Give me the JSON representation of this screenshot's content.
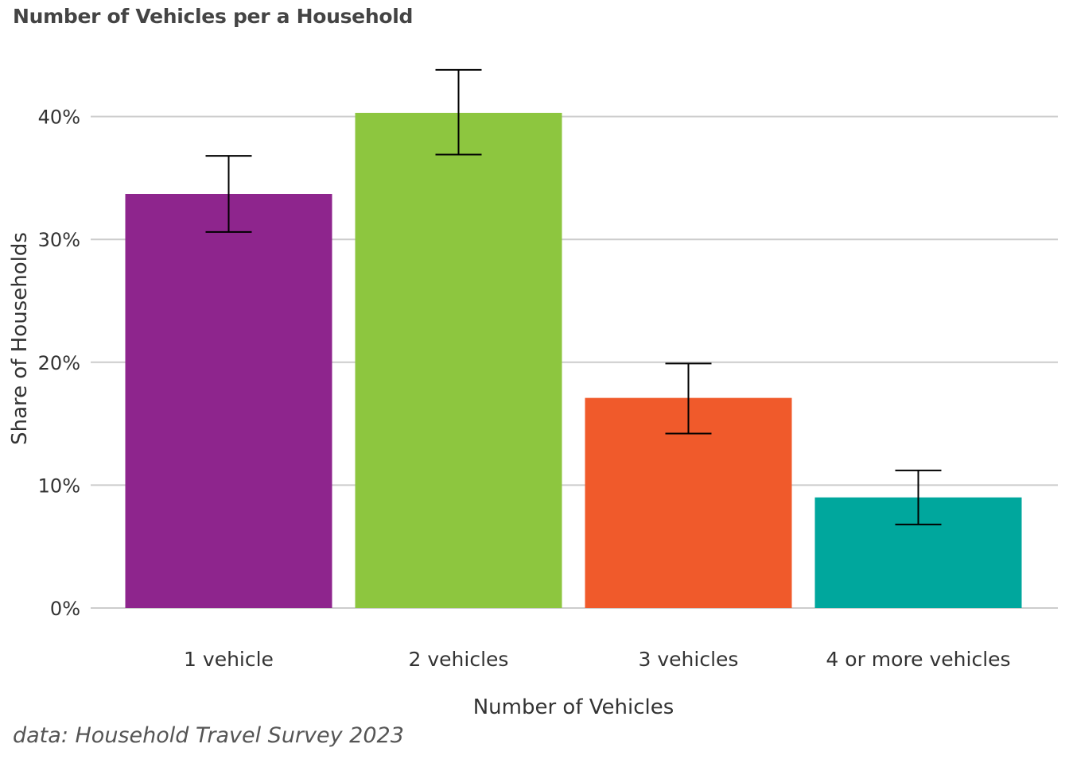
{
  "chart_data": {
    "type": "bar",
    "title": "Number of Vehicles per a Household",
    "xlabel": "Number of Vehicles",
    "ylabel": "Share of Households",
    "caption": "data: Household Travel Survey 2023",
    "categories": [
      "1 vehicle",
      "2 vehicles",
      "3 vehicles",
      "4 or more vehicles"
    ],
    "values": [
      33.7,
      40.3,
      17.1,
      9.0
    ],
    "error_low": [
      30.6,
      36.9,
      14.2,
      6.8
    ],
    "error_high": [
      36.8,
      43.8,
      19.9,
      11.2
    ],
    "colors": [
      "#8e258d",
      "#8dc63f",
      "#f05a2b",
      "#00a79d"
    ],
    "ylim": [
      0,
      46
    ],
    "yticks": [
      0,
      10,
      20,
      30,
      40
    ],
    "ytick_labels": [
      "0%",
      "10%",
      "20%",
      "30%",
      "40%"
    ],
    "grid": true,
    "legend": "none"
  }
}
